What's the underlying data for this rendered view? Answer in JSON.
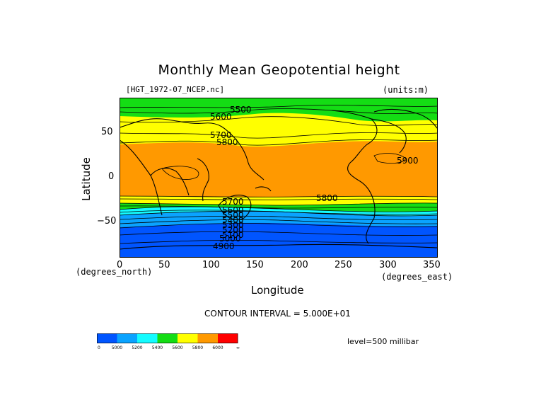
{
  "title": "Monthly Mean Geopotential height",
  "file_label": "[HGT_1972-07_NCEP.nc]",
  "units_label": "(units:m)",
  "y_axis": {
    "label": "Latitude",
    "unit_label": "(degrees_north)",
    "ticks": [
      "50",
      "0",
      "−50"
    ]
  },
  "x_axis": {
    "label": "Longitude",
    "unit_label": "(degrees_east)",
    "ticks": [
      "0",
      "50",
      "100",
      "150",
      "200",
      "250",
      "300",
      "350"
    ]
  },
  "contour_interval": "CONTOUR INTERVAL = 5.000E+01",
  "level": "level=500 millibar",
  "contour_labels": [
    "5600",
    "5500",
    "5700",
    "5800",
    "5900",
    "5800",
    "5700",
    "5600",
    "5500",
    "5400",
    "5300",
    "5200",
    "5100",
    "5000",
    "4900"
  ],
  "colorbar": {
    "colors": [
      "#0055ff",
      "#0aa3ff",
      "#14fbff",
      "#14dd14",
      "#ffff00",
      "#ff9900",
      "#ff0000"
    ],
    "labels": [
      "0",
      "5000",
      "5200",
      "5400",
      "5600",
      "5800",
      "6000",
      "∞"
    ]
  },
  "map_colors": {
    "blue": "#0055ff",
    "mid_blue": "#0aa3ff",
    "cyan": "#14fbff",
    "green": "#14dd14",
    "yellow": "#ffff00",
    "orange": "#ff9900"
  }
}
